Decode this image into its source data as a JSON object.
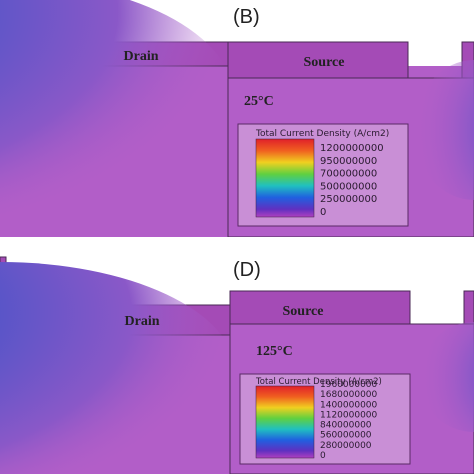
{
  "panels": [
    {
      "id": "B",
      "letter": "(B)",
      "drain_label": "Drain",
      "source_label": "Source",
      "temperature": "25°C",
      "legend_title": "Total Current Density (A/cm2)",
      "legend_ticks": [
        "1200000000",
        "950000000",
        "700000000",
        "500000000",
        "250000000",
        "0"
      ]
    },
    {
      "id": "D",
      "letter": "(D)",
      "drain_label": "Drain",
      "source_label": "Source",
      "temperature": "125°C",
      "legend_title": "Total Current Density (A/cm2)",
      "legend_ticks": [
        "1960000000",
        "1680000000",
        "1400000000",
        "1120000000",
        "840000000",
        "560000000",
        "280000000",
        "0"
      ]
    }
  ],
  "colors": {
    "substrate": "#b25ec8",
    "electrode": "#a44bb6",
    "outline": "#4a2a55",
    "legend_bg": "#c98fd6"
  }
}
